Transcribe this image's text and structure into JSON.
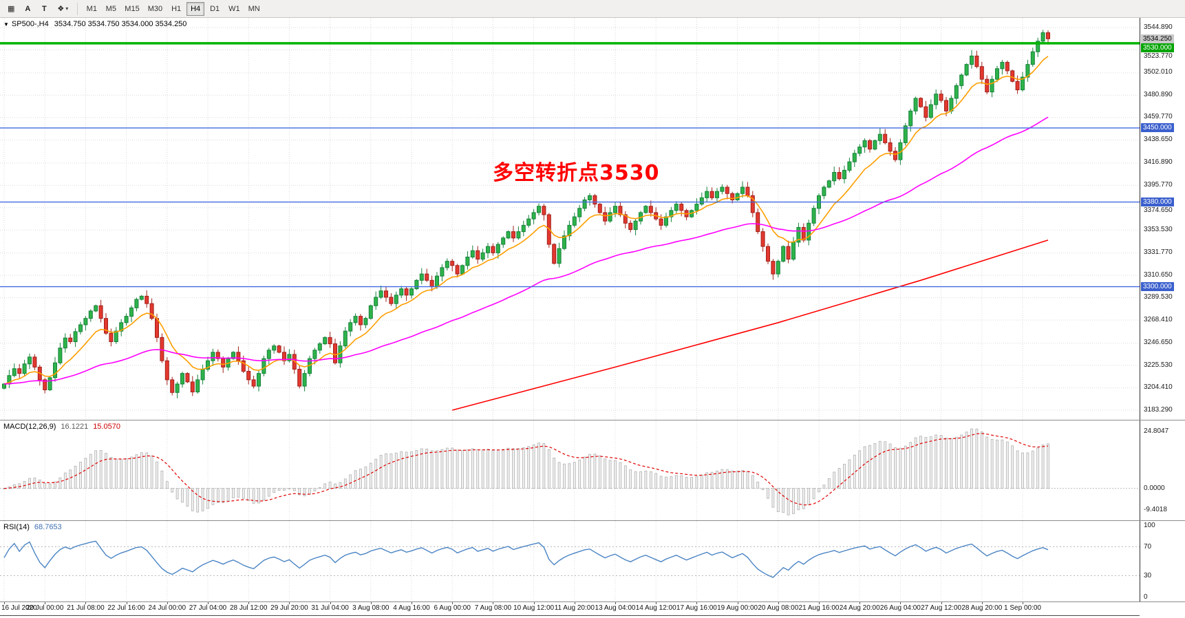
{
  "toolbar": {
    "icon_buttons": [
      {
        "name": "chart-window-icon",
        "glyph": "▦"
      },
      {
        "name": "cursor-tool",
        "label": "A"
      },
      {
        "name": "text-tool",
        "label": "T"
      },
      {
        "name": "objects-tool",
        "glyph": "❖",
        "caret": "▾"
      }
    ],
    "timeframes": [
      "M1",
      "M5",
      "M15",
      "M30",
      "H1",
      "H4",
      "D1",
      "W1",
      "MN"
    ],
    "active_timeframe": "H4"
  },
  "chart": {
    "collapse_icon": "▼",
    "legend_symbol": "SP500-,H4",
    "legend_ohlc": "3534.750 3534.750 3534.000 3534.250",
    "annotation": {
      "text": "多空转折点3530",
      "color": "#ff0000"
    },
    "current_price_tag": {
      "text": "3534.250",
      "bg": "#c8c8c8",
      "fg": "#000000"
    }
  },
  "chart_data": {
    "type": "candlestick",
    "symbol": "SP500-",
    "timeframe": "H4",
    "y_range": [
      3183.29,
      3544.89
    ],
    "first_open": 3204,
    "closes": [
      3208,
      3216,
      3222.5,
      3218,
      3227,
      3233.5,
      3224,
      3212,
      3202.5,
      3214,
      3228,
      3242,
      3251.5,
      3248,
      3257.5,
      3264,
      3270,
      3277,
      3282,
      3270,
      3256,
      3248,
      3258,
      3266,
      3272,
      3280,
      3288,
      3291,
      3284,
      3270,
      3252,
      3230,
      3212,
      3200,
      3208,
      3218,
      3210,
      3200.5,
      3212,
      3222,
      3230,
      3238,
      3232,
      3224,
      3232,
      3238,
      3230,
      3220,
      3212,
      3206,
      3218,
      3232,
      3240,
      3244,
      3238,
      3230,
      3236,
      3222,
      3206,
      3218,
      3232,
      3240,
      3246,
      3252,
      3246,
      3228,
      3244,
      3258,
      3266,
      3272,
      3264,
      3270,
      3282,
      3290,
      3296,
      3290,
      3284,
      3292,
      3298,
      3292,
      3298,
      3306,
      3312,
      3306,
      3300,
      3310,
      3318,
      3324,
      3320,
      3312,
      3320,
      3328,
      3334,
      3326,
      3332,
      3338,
      3332,
      3340,
      3346,
      3352,
      3346,
      3352,
      3358,
      3364,
      3370,
      3376,
      3368,
      3340,
      3322,
      3336,
      3348,
      3358,
      3366,
      3374,
      3382,
      3386,
      3378,
      3370,
      3362,
      3370,
      3376,
      3368,
      3360,
      3354,
      3362,
      3370,
      3376,
      3370,
      3364,
      3358,
      3366,
      3372,
      3378,
      3372,
      3366,
      3372,
      3378,
      3384,
      3390,
      3384,
      3390,
      3394,
      3388,
      3382,
      3388,
      3394,
      3386,
      3370,
      3352,
      3338,
      3324,
      3312,
      3324,
      3338,
      3326,
      3342,
      3356,
      3344,
      3360,
      3374,
      3386,
      3394,
      3400,
      3408,
      3402,
      3410,
      3418,
      3426,
      3432,
      3438,
      3430,
      3438,
      3444,
      3436,
      3428,
      3420,
      3436,
      3452,
      3466,
      3478,
      3470,
      3460,
      3472,
      3482,
      3476,
      3466,
      3478,
      3490,
      3500,
      3510,
      3518,
      3508,
      3496,
      3484,
      3496,
      3506,
      3512,
      3504,
      3494,
      3486,
      3498,
      3510,
      3522,
      3532,
      3540,
      3534.25
    ],
    "price_axis_labels": [
      "3544.890",
      "3523.770",
      "3502.010",
      "3480.890",
      "3459.770",
      "3438.650",
      "3416.890",
      "3395.770",
      "3374.650",
      "3353.530",
      "3331.770",
      "3310.650",
      "3289.530",
      "3268.410",
      "3246.650",
      "3225.530",
      "3204.410",
      "3183.290"
    ],
    "time_labels": [
      "16 Jul 2020",
      "20 Jul 00:00",
      "21 Jul 08:00",
      "22 Jul 16:00",
      "24 Jul 00:00",
      "27 Jul 04:00",
      "28 Jul 12:00",
      "29 Jul 20:00",
      "31 Jul 04:00",
      "3 Aug 08:00",
      "4 Aug 16:00",
      "6 Aug 00:00",
      "7 Aug 08:00",
      "10 Aug 12:00",
      "11 Aug 20:00",
      "13 Aug 04:00",
      "14 Aug 12:00",
      "17 Aug 16:00",
      "19 Aug 00:00",
      "20 Aug 08:00",
      "21 Aug 16:00",
      "24 Aug 20:00",
      "26 Aug 04:00",
      "27 Aug 12:00",
      "28 Aug 20:00",
      "1 Sep 00:00"
    ],
    "hlines": [
      {
        "price": 3530.0,
        "label": "3530.000",
        "color": "#00b400",
        "width": 3.5,
        "tag_bg": "#00a400"
      },
      {
        "price": 3450.0,
        "label": "3450.000",
        "color": "#4169e1",
        "width": 1.4,
        "tag_bg": "#3a5fcd"
      },
      {
        "price": 3380.0,
        "label": "3380.000",
        "color": "#4169e1",
        "width": 1.4,
        "tag_bg": "#3a5fcd"
      },
      {
        "price": 3300.0,
        "label": "3300.000",
        "color": "#4169e1",
        "width": 1.4,
        "tag_bg": "#3a5fcd"
      }
    ],
    "moving_averages": [
      {
        "name": "ma-fast",
        "color": "#ff9e00",
        "type": "ema",
        "period": 10
      },
      {
        "name": "ma-mid",
        "color": "#ff00ff",
        "type": "ema",
        "period": 55
      },
      {
        "name": "ma-slow",
        "color": "#ff0000",
        "type": "anchors",
        "points": [
          [
            88,
            3183.3
          ],
          [
            120,
            3224
          ],
          [
            152,
            3266
          ],
          [
            180,
            3306
          ],
          [
            205,
            3344
          ]
        ]
      }
    ],
    "candle_colors": {
      "up_fill": "#2eb34a",
      "up_stroke": "#15813a",
      "down_fill": "#e3382e",
      "down_stroke": "#9f201a"
    },
    "macd": {
      "label": "MACD(12,26,9)",
      "value_main": "16.1221",
      "value_signal": "15.0570",
      "fast": 12,
      "slow": 26,
      "signal": 9,
      "max": 24.8047,
      "min": -9.4018,
      "scale": [
        "24.8047",
        "0.0000",
        "-9.4018"
      ]
    },
    "rsi": {
      "label": "RSI(14)",
      "value": "68.7653",
      "period": 14,
      "levels": [
        70,
        30
      ],
      "scale": [
        "100",
        "70",
        "30",
        "0"
      ],
      "color": "#4a84c4"
    }
  }
}
